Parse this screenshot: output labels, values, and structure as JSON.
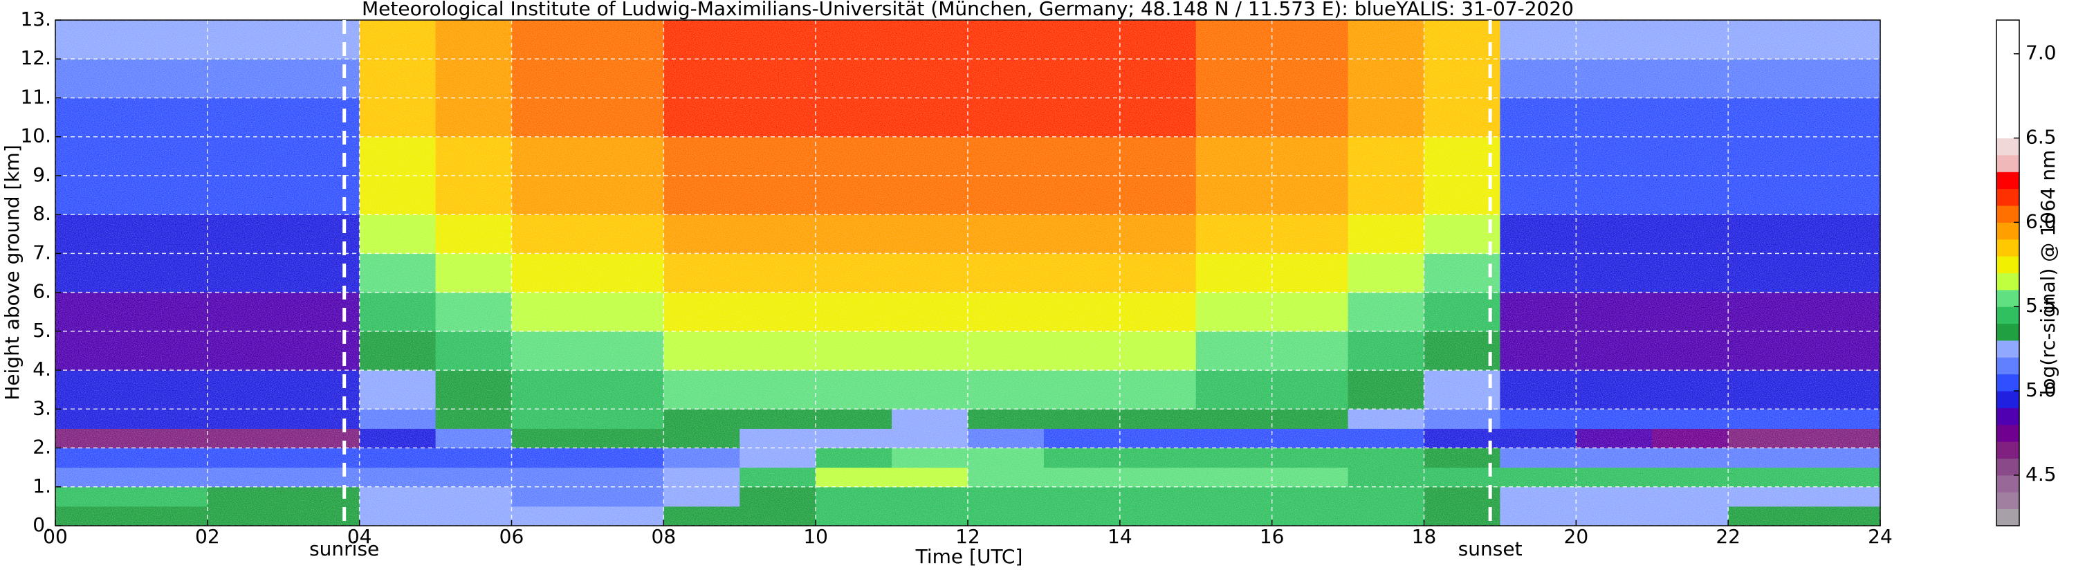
{
  "chart_data": {
    "type": "heatmap",
    "title": "Meteorological Institute of Ludwig-Maximilians-Universität (München, Germany; 48.148 N / 11.573 E):    blueYALIS: 31-07-2020",
    "x_label": "Time [UTC]",
    "y_label": "Height above ground [km]",
    "colorbar_label": "log(rc-signal) @ 1064 nm",
    "x_bins": [
      0,
      1,
      2,
      3,
      4,
      5,
      6,
      7,
      8,
      9,
      10,
      11,
      12,
      13,
      14,
      15,
      16,
      17,
      18,
      19,
      20,
      21,
      22,
      23,
      24
    ],
    "y_bins": [
      0,
      0.5,
      1,
      1.5,
      2,
      2.5,
      3,
      4,
      5,
      6,
      7,
      8,
      9,
      10,
      11,
      12,
      13
    ],
    "values": [
      [
        5.3,
        5.3,
        5.3,
        5.3,
        5.2,
        5.2,
        5.2,
        5.2,
        5.3,
        5.3,
        5.4,
        5.4,
        5.4,
        5.4,
        5.4,
        5.4,
        5.4,
        5.4,
        5.3,
        5.2,
        5.2,
        5.2,
        5.3,
        5.3
      ],
      [
        5.4,
        5.4,
        5.3,
        5.3,
        5.2,
        5.2,
        5.1,
        5.1,
        5.2,
        5.3,
        5.4,
        5.4,
        5.4,
        5.4,
        5.4,
        5.4,
        5.4,
        5.4,
        5.3,
        5.2,
        5.2,
        5.2,
        5.2,
        5.2
      ],
      [
        5.1,
        5.1,
        5.1,
        5.1,
        5.1,
        5.1,
        5.1,
        5.1,
        5.2,
        5.4,
        5.6,
        5.6,
        5.5,
        5.5,
        5.5,
        5.5,
        5.5,
        5.4,
        5.4,
        5.4,
        5.4,
        5.4,
        5.4,
        5.4
      ],
      [
        5.0,
        5.0,
        5.0,
        5.0,
        5.0,
        5.0,
        5.0,
        5.0,
        5.1,
        5.2,
        5.4,
        5.5,
        5.5,
        5.4,
        5.4,
        5.4,
        5.4,
        5.4,
        5.3,
        5.1,
        5.1,
        5.1,
        5.1,
        5.1
      ],
      [
        4.6,
        4.6,
        4.6,
        4.6,
        4.9,
        5.1,
        5.3,
        5.3,
        5.3,
        5.2,
        5.2,
        5.2,
        5.1,
        5.0,
        5.0,
        5.0,
        5.0,
        5.0,
        4.9,
        4.9,
        4.8,
        4.7,
        4.6,
        4.6
      ],
      [
        4.9,
        4.9,
        4.9,
        4.9,
        5.1,
        5.3,
        5.4,
        5.4,
        5.3,
        5.3,
        5.3,
        5.2,
        5.3,
        5.3,
        5.3,
        5.3,
        5.3,
        5.2,
        5.1,
        5.0,
        5.0,
        5.0,
        5.0,
        5.0
      ],
      [
        4.9,
        4.9,
        4.9,
        4.9,
        5.2,
        5.3,
        5.4,
        5.4,
        5.5,
        5.5,
        5.5,
        5.5,
        5.5,
        5.5,
        5.5,
        5.4,
        5.4,
        5.3,
        5.2,
        4.9,
        4.9,
        4.9,
        4.9,
        4.9
      ],
      [
        4.8,
        4.8,
        4.8,
        4.8,
        5.3,
        5.4,
        5.5,
        5.5,
        5.6,
        5.6,
        5.6,
        5.6,
        5.6,
        5.6,
        5.6,
        5.5,
        5.5,
        5.4,
        5.3,
        4.8,
        4.8,
        4.8,
        4.8,
        4.8
      ],
      [
        4.8,
        4.8,
        4.8,
        4.8,
        5.4,
        5.5,
        5.6,
        5.6,
        5.7,
        5.7,
        5.7,
        5.7,
        5.7,
        5.7,
        5.7,
        5.6,
        5.6,
        5.5,
        5.4,
        4.8,
        4.8,
        4.8,
        4.8,
        4.8
      ],
      [
        4.9,
        4.9,
        4.9,
        4.9,
        5.5,
        5.6,
        5.7,
        5.7,
        5.8,
        5.8,
        5.8,
        5.8,
        5.8,
        5.8,
        5.8,
        5.7,
        5.7,
        5.6,
        5.5,
        4.9,
        4.9,
        4.9,
        4.9,
        4.9
      ],
      [
        4.9,
        4.9,
        4.9,
        4.9,
        5.6,
        5.7,
        5.8,
        5.8,
        5.9,
        5.9,
        5.9,
        5.9,
        5.9,
        5.9,
        5.9,
        5.8,
        5.8,
        5.7,
        5.6,
        4.9,
        4.9,
        4.9,
        4.9,
        4.9
      ],
      [
        5.0,
        5.0,
        5.0,
        5.0,
        5.7,
        5.8,
        5.9,
        5.9,
        6.0,
        6.0,
        6.0,
        6.0,
        6.0,
        6.0,
        6.0,
        5.9,
        5.9,
        5.8,
        5.7,
        5.0,
        5.0,
        5.0,
        5.0,
        5.0
      ],
      [
        5.0,
        5.0,
        5.0,
        5.0,
        5.7,
        5.8,
        5.9,
        5.9,
        6.0,
        6.0,
        6.0,
        6.0,
        6.0,
        6.0,
        6.0,
        5.9,
        5.9,
        5.8,
        5.7,
        5.0,
        5.0,
        5.0,
        5.0,
        5.0
      ],
      [
        5.0,
        5.0,
        5.0,
        5.0,
        5.8,
        5.9,
        6.0,
        6.0,
        6.1,
        6.1,
        6.1,
        6.1,
        6.1,
        6.1,
        6.1,
        6.0,
        6.0,
        5.9,
        5.8,
        5.0,
        5.0,
        5.0,
        5.0,
        5.0
      ],
      [
        5.1,
        5.1,
        5.1,
        5.1,
        5.8,
        5.9,
        6.0,
        6.0,
        6.1,
        6.1,
        6.1,
        6.1,
        6.1,
        6.1,
        6.1,
        6.0,
        6.0,
        5.9,
        5.8,
        5.1,
        5.1,
        5.1,
        5.1,
        5.1
      ],
      [
        5.2,
        5.2,
        5.2,
        5.2,
        5.8,
        5.9,
        6.0,
        6.0,
        6.1,
        6.1,
        6.1,
        6.1,
        6.1,
        6.1,
        6.1,
        6.0,
        6.0,
        5.9,
        5.8,
        5.2,
        5.2,
        5.2,
        5.2,
        5.2
      ]
    ],
    "xlim": [
      0,
      24
    ],
    "ylim": [
      0,
      13
    ],
    "xticks": [
      {
        "value": 0,
        "label": "00"
      },
      {
        "value": 2,
        "label": "02"
      },
      {
        "value": 4,
        "label": "04"
      },
      {
        "value": 6,
        "label": "06"
      },
      {
        "value": 8,
        "label": "08"
      },
      {
        "value": 10,
        "label": "10"
      },
      {
        "value": 12,
        "label": "12"
      },
      {
        "value": 14,
        "label": "14"
      },
      {
        "value": 16,
        "label": "16"
      },
      {
        "value": 18,
        "label": "18"
      },
      {
        "value": 20,
        "label": "20"
      },
      {
        "value": 22,
        "label": "22"
      },
      {
        "value": 24,
        "label": "24"
      }
    ],
    "yticks": [
      {
        "value": 0,
        "label": "0."
      },
      {
        "value": 1,
        "label": "1."
      },
      {
        "value": 2,
        "label": "2."
      },
      {
        "value": 3,
        "label": "3."
      },
      {
        "value": 4,
        "label": "4."
      },
      {
        "value": 5,
        "label": "5."
      },
      {
        "value": 6,
        "label": "6."
      },
      {
        "value": 7,
        "label": "7."
      },
      {
        "value": 8,
        "label": "8."
      },
      {
        "value": 9,
        "label": "9."
      },
      {
        "value": 10,
        "label": "10."
      },
      {
        "value": 11,
        "label": "11."
      },
      {
        "value": 12,
        "label": "12."
      },
      {
        "value": 13,
        "label": "13."
      }
    ],
    "grid": true,
    "clim": [
      4.2,
      7.2
    ],
    "cticks": [
      4.5,
      {
        "value": 5,
        "label": "5.0"
      },
      5.5,
      {
        "value": 6,
        "label": "6.0"
      },
      6.5,
      {
        "value": 7,
        "label": "7.0"
      }
    ],
    "colorscale": [
      "#a8a0a8",
      "#a080a0",
      "#986898",
      "#8a4a8a",
      "#802080",
      "#700090",
      "#5000b0",
      "#2020e0",
      "#3050ff",
      "#6080ff",
      "#90a8ff",
      "#20a040",
      "#30c060",
      "#60e080",
      "#c0ff40",
      "#f0f000",
      "#ffc800",
      "#ffa000",
      "#ff7000",
      "#ff3000",
      "#ff0000",
      "#f0b8b8",
      "#f0d8d8",
      "#ffffff",
      "#ffffff",
      "#ffffff",
      "#ffffff",
      "#ffffff",
      "#ffffff",
      "#ffffff"
    ],
    "annotations": [
      {
        "text": "sunrise",
        "x": 3.8
      },
      {
        "text": "sunset",
        "x": 18.87
      }
    ]
  }
}
